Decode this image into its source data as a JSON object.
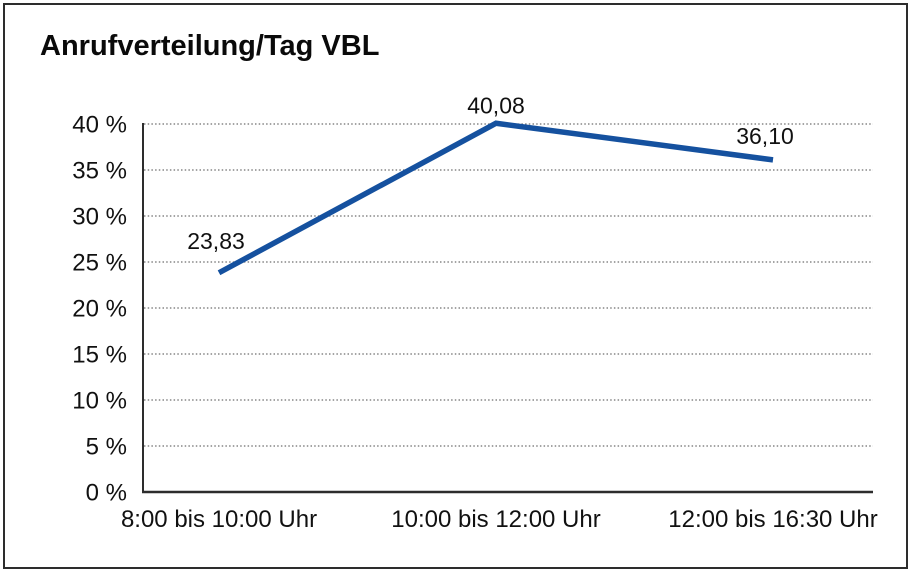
{
  "chart_data": {
    "type": "line",
    "title": "Anrufverteilung/Tag VBL",
    "categories": [
      "8:00 bis 10:00 Uhr",
      "10:00 bis 12:00 Uhr",
      "12:00 bis 16:30 Uhr"
    ],
    "series": [
      {
        "name": "Anrufverteilung/Tag VBL",
        "values": [
          23.83,
          40.08,
          36.1
        ],
        "value_labels": [
          "23,83",
          "40,08",
          "36,10"
        ]
      }
    ],
    "xlabel": "",
    "ylabel": "",
    "ylim": [
      0,
      40
    ],
    "ytick_step": 5,
    "ytick_labels": [
      "0 %",
      "5 %",
      "10 %",
      "15 %",
      "20 %",
      "25 %",
      "30 %",
      "35 %",
      "40 %"
    ],
    "grid": "horizontal-dotted",
    "legend": "none",
    "line_color": "#15519f",
    "axis_color": "#2d2d2d",
    "grid_color": "#6e6e6e",
    "text_color": "#111111"
  }
}
